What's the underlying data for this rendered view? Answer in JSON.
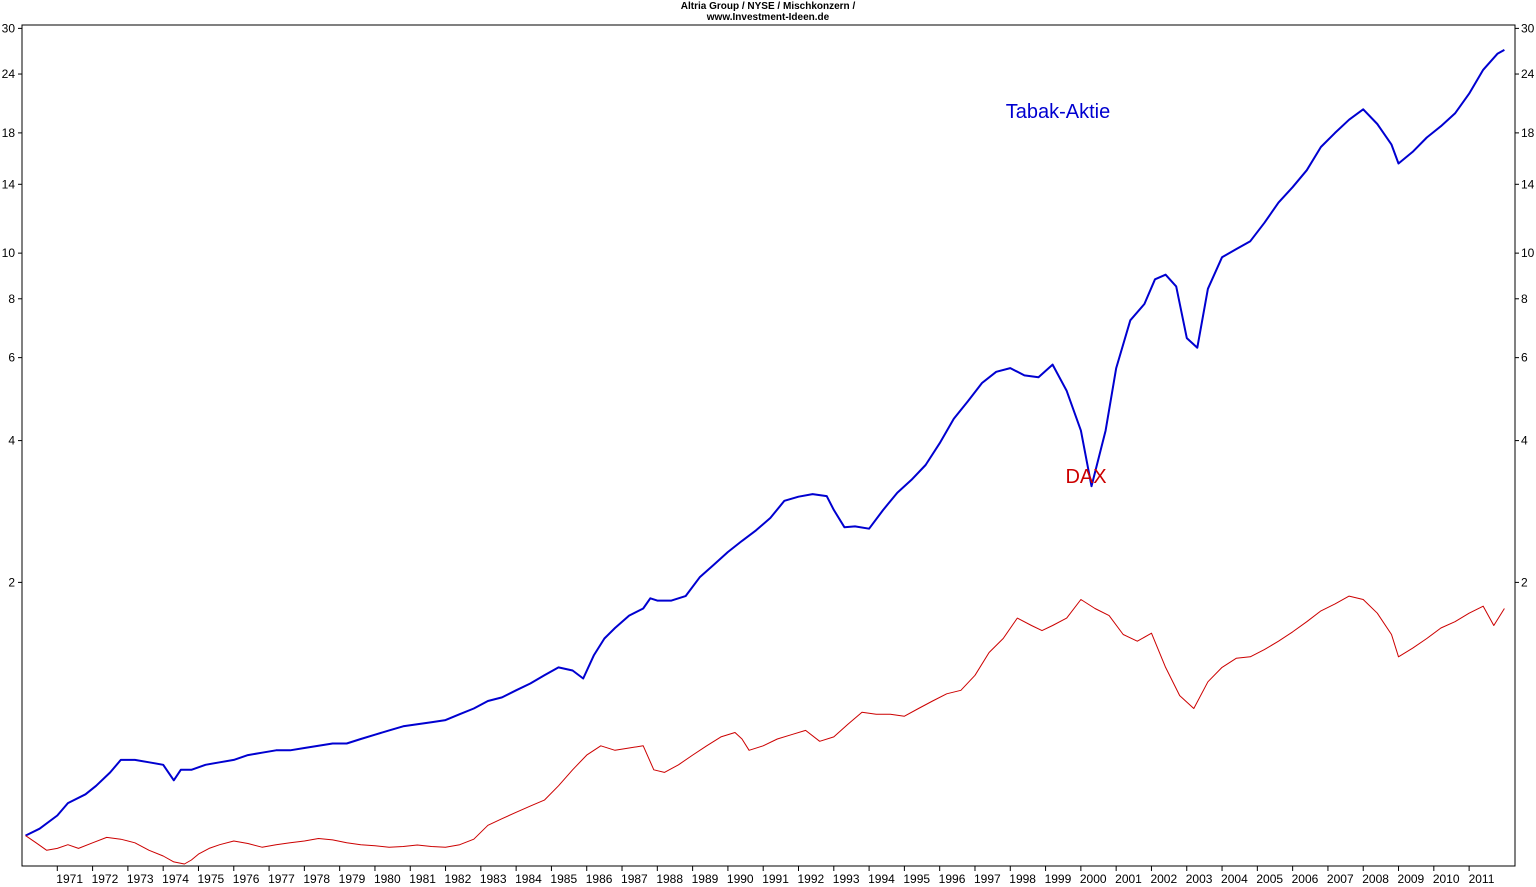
{
  "title_line1": "Altria Group / NYSE / Mischkonzern /",
  "title_line2": "www.Investment-Ideen.de",
  "chart_data": {
    "type": "line",
    "title": "Altria Group / NYSE / Mischkonzern /",
    "subtitle": "www.Investment-Ideen.de",
    "x_axis_type": "year",
    "xlim": [
      1970.0,
      2012.3
    ],
    "x_ticks": [
      "1971",
      "1972",
      "1973",
      "1974",
      "1975",
      "1976",
      "1977",
      "1978",
      "1979",
      "1980",
      "1981",
      "1982",
      "1983",
      "1984",
      "1985",
      "1986",
      "1987",
      "1988",
      "1989",
      "1990",
      "1991",
      "1992",
      "1993",
      "1994",
      "1995",
      "1996",
      "1997",
      "1998",
      "1999",
      "2000",
      "2001",
      "2002",
      "2003",
      "2004",
      "2005",
      "2006",
      "2007",
      "2008",
      "2009",
      "2010",
      "2011"
    ],
    "y_scale": "log",
    "ylim": [
      0.5,
      30.5
    ],
    "y_ticks": [
      2,
      4,
      6,
      8,
      10,
      14,
      18,
      24,
      30
    ],
    "grid": false,
    "colors": {
      "Tabak-Aktie": "#0000d0",
      "DAX": "#cc0000",
      "axis": "#000000"
    },
    "series": [
      {
        "name": "Tabak-Aktie",
        "label_position": "upper-right",
        "x": [
          1970.1,
          1970.5,
          1971.0,
          1971.3,
          1971.8,
          1972.1,
          1972.5,
          1972.8,
          1973.2,
          1973.6,
          1974.0,
          1974.3,
          1974.5,
          1974.8,
          1975.2,
          1975.6,
          1976.0,
          1976.4,
          1976.8,
          1977.2,
          1977.6,
          1978.0,
          1978.4,
          1978.8,
          1979.2,
          1979.6,
          1980.0,
          1980.4,
          1980.8,
          1981.2,
          1981.6,
          1982.0,
          1982.4,
          1982.8,
          1983.2,
          1983.6,
          1984.0,
          1984.4,
          1984.8,
          1985.2,
          1985.6,
          1985.9,
          1986.2,
          1986.5,
          1986.8,
          1987.2,
          1987.6,
          1987.8,
          1988.0,
          1988.4,
          1988.8,
          1989.2,
          1989.6,
          1990.0,
          1990.4,
          1990.8,
          1991.2,
          1991.6,
          1992.0,
          1992.4,
          1992.8,
          1993.0,
          1993.3,
          1993.6,
          1994.0,
          1994.4,
          1994.8,
          1995.2,
          1995.6,
          1996.0,
          1996.4,
          1996.8,
          1997.2,
          1997.6,
          1998.0,
          1998.4,
          1998.8,
          1999.2,
          1999.6,
          2000.0,
          2000.3,
          2000.7,
          2001.0,
          2001.4,
          2001.8,
          2002.1,
          2002.4,
          2002.7,
          2003.0,
          2003.3,
          2003.6,
          2004.0,
          2004.4,
          2004.8,
          2005.2,
          2005.6,
          2006.0,
          2006.4,
          2006.8,
          2007.2,
          2007.6,
          2008.0,
          2008.4,
          2008.8,
          2009.0,
          2009.4,
          2009.8,
          2010.2,
          2010.6,
          2011.0,
          2011.4,
          2011.8,
          2012.0
        ],
        "values": [
          0.58,
          0.6,
          0.64,
          0.68,
          0.71,
          0.74,
          0.79,
          0.84,
          0.84,
          0.83,
          0.82,
          0.76,
          0.8,
          0.8,
          0.82,
          0.83,
          0.84,
          0.86,
          0.87,
          0.88,
          0.88,
          0.89,
          0.9,
          0.91,
          0.91,
          0.93,
          0.95,
          0.97,
          0.99,
          1.0,
          1.01,
          1.02,
          1.05,
          1.08,
          1.12,
          1.14,
          1.18,
          1.22,
          1.27,
          1.32,
          1.3,
          1.25,
          1.4,
          1.52,
          1.6,
          1.7,
          1.76,
          1.85,
          1.83,
          1.83,
          1.87,
          2.05,
          2.18,
          2.32,
          2.45,
          2.58,
          2.74,
          2.98,
          3.04,
          3.08,
          3.05,
          2.85,
          2.62,
          2.63,
          2.6,
          2.85,
          3.1,
          3.3,
          3.55,
          3.95,
          4.45,
          4.85,
          5.3,
          5.6,
          5.7,
          5.5,
          5.45,
          5.8,
          5.1,
          4.2,
          3.2,
          4.2,
          5.7,
          7.2,
          7.8,
          8.8,
          9.0,
          8.5,
          6.6,
          6.3,
          8.4,
          9.8,
          10.2,
          10.6,
          11.6,
          12.8,
          13.8,
          15.0,
          16.8,
          18.0,
          19.2,
          20.2,
          18.8,
          17.0,
          15.5,
          16.4,
          17.6,
          18.6,
          19.8,
          21.8,
          24.5,
          26.5,
          27.0
        ]
      },
      {
        "name": "DAX",
        "label_position": "center-right",
        "x": [
          1970.1,
          1970.4,
          1970.7,
          1971.0,
          1971.3,
          1971.6,
          1972.0,
          1972.4,
          1972.8,
          1973.2,
          1973.6,
          1974.0,
          1974.3,
          1974.6,
          1974.8,
          1975.0,
          1975.3,
          1975.6,
          1976.0,
          1976.4,
          1976.8,
          1977.2,
          1977.6,
          1978.0,
          1978.4,
          1978.8,
          1979.2,
          1979.6,
          1980.0,
          1980.4,
          1980.8,
          1981.2,
          1981.6,
          1982.0,
          1982.4,
          1982.8,
          1983.2,
          1983.6,
          1984.0,
          1984.4,
          1984.8,
          1985.2,
          1985.6,
          1986.0,
          1986.4,
          1986.8,
          1987.2,
          1987.6,
          1987.9,
          1988.2,
          1988.6,
          1989.0,
          1989.4,
          1989.8,
          1990.2,
          1990.4,
          1990.6,
          1991.0,
          1991.4,
          1991.8,
          1992.2,
          1992.6,
          1993.0,
          1993.4,
          1993.8,
          1994.2,
          1994.6,
          1995.0,
          1995.4,
          1995.8,
          1996.2,
          1996.6,
          1997.0,
          1997.4,
          1997.8,
          1998.2,
          1998.6,
          1998.9,
          1999.2,
          1999.6,
          2000.0,
          2000.4,
          2000.8,
          2001.2,
          2001.6,
          2002.0,
          2002.4,
          2002.8,
          2003.2,
          2003.6,
          2004.0,
          2004.4,
          2004.8,
          2005.2,
          2005.6,
          2006.0,
          2006.4,
          2006.8,
          2007.2,
          2007.6,
          2008.0,
          2008.4,
          2008.8,
          2009.0,
          2009.4,
          2009.8,
          2010.2,
          2010.6,
          2011.0,
          2011.4,
          2011.7,
          2012.0
        ],
        "values": [
          0.58,
          0.56,
          0.54,
          0.545,
          0.555,
          0.545,
          0.56,
          0.575,
          0.57,
          0.56,
          0.54,
          0.525,
          0.51,
          0.505,
          0.515,
          0.53,
          0.545,
          0.555,
          0.565,
          0.558,
          0.548,
          0.555,
          0.56,
          0.565,
          0.572,
          0.568,
          0.56,
          0.555,
          0.552,
          0.548,
          0.55,
          0.554,
          0.55,
          0.548,
          0.555,
          0.57,
          0.61,
          0.63,
          0.65,
          0.67,
          0.69,
          0.74,
          0.8,
          0.86,
          0.9,
          0.88,
          0.89,
          0.9,
          0.8,
          0.79,
          0.82,
          0.86,
          0.9,
          0.94,
          0.96,
          0.93,
          0.88,
          0.9,
          0.93,
          0.95,
          0.97,
          0.92,
          0.94,
          1.0,
          1.06,
          1.05,
          1.05,
          1.04,
          1.08,
          1.12,
          1.16,
          1.18,
          1.27,
          1.42,
          1.52,
          1.68,
          1.62,
          1.58,
          1.62,
          1.68,
          1.84,
          1.76,
          1.7,
          1.55,
          1.5,
          1.56,
          1.32,
          1.15,
          1.08,
          1.23,
          1.32,
          1.38,
          1.39,
          1.44,
          1.5,
          1.57,
          1.65,
          1.74,
          1.8,
          1.87,
          1.84,
          1.72,
          1.55,
          1.39,
          1.45,
          1.52,
          1.6,
          1.65,
          1.72,
          1.78,
          1.62,
          1.76
        ]
      }
    ]
  }
}
